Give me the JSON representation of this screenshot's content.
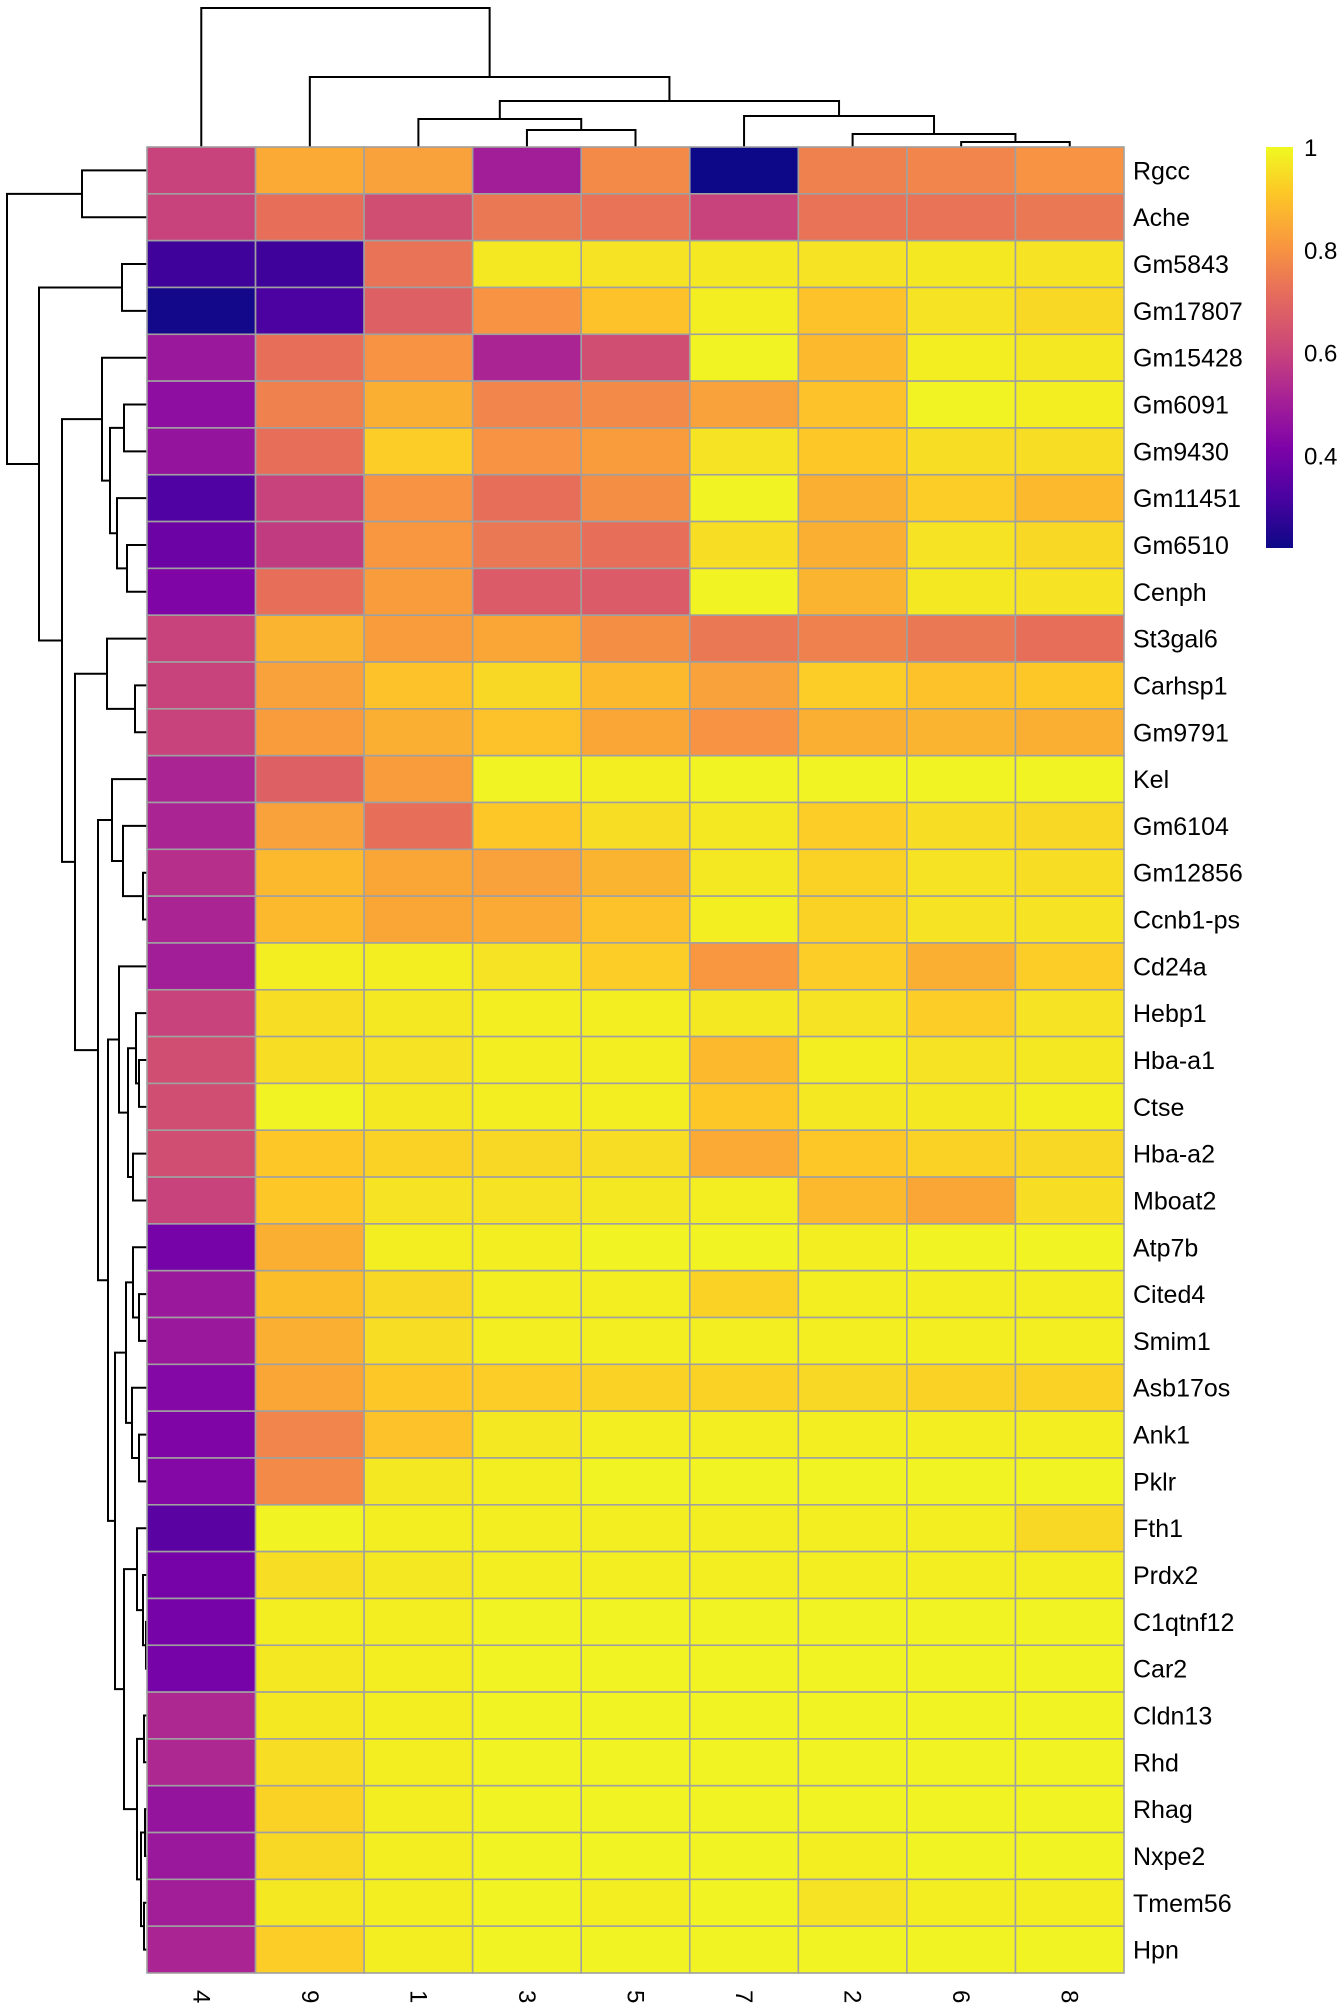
{
  "chart_data": {
    "type": "heatmap",
    "title": "",
    "colormap": "plasma",
    "color_range": [
      0.22,
      1
    ],
    "columns": [
      "4",
      "9",
      "1",
      "3",
      "5",
      "7",
      "2",
      "6",
      "8"
    ],
    "rows": [
      {
        "label": "Rgcc",
        "values": [
          0.6,
          0.85,
          0.83,
          0.5,
          0.78,
          0.22,
          0.76,
          0.77,
          0.8
        ]
      },
      {
        "label": "Ache",
        "values": [
          0.6,
          0.72,
          0.63,
          0.74,
          0.73,
          0.6,
          0.73,
          0.73,
          0.74
        ]
      },
      {
        "label": "Gm5843",
        "values": [
          0.3,
          0.3,
          0.73,
          0.97,
          0.96,
          0.97,
          0.96,
          0.97,
          0.96
        ]
      },
      {
        "label": "Gm17807",
        "values": [
          0.23,
          0.32,
          0.68,
          0.8,
          0.9,
          0.98,
          0.9,
          0.96,
          0.94
        ]
      },
      {
        "label": "Gm15428",
        "values": [
          0.48,
          0.72,
          0.8,
          0.52,
          0.63,
          0.99,
          0.88,
          0.98,
          0.97
        ]
      },
      {
        "label": "Gm6091",
        "values": [
          0.45,
          0.76,
          0.86,
          0.77,
          0.78,
          0.83,
          0.9,
          0.99,
          0.98
        ]
      },
      {
        "label": "Gm9430",
        "values": [
          0.47,
          0.72,
          0.92,
          0.8,
          0.82,
          0.96,
          0.91,
          0.95,
          0.95
        ]
      },
      {
        "label": "Gm11451",
        "values": [
          0.33,
          0.6,
          0.8,
          0.72,
          0.79,
          0.99,
          0.86,
          0.92,
          0.88
        ]
      },
      {
        "label": "Gm6510",
        "values": [
          0.38,
          0.58,
          0.81,
          0.74,
          0.72,
          0.95,
          0.86,
          0.96,
          0.94
        ]
      },
      {
        "label": "Cenph",
        "values": [
          0.42,
          0.72,
          0.82,
          0.67,
          0.67,
          0.99,
          0.87,
          0.97,
          0.96
        ]
      },
      {
        "label": "St3gal6",
        "values": [
          0.6,
          0.87,
          0.82,
          0.84,
          0.79,
          0.74,
          0.76,
          0.74,
          0.72
        ]
      },
      {
        "label": "Carhsp1",
        "values": [
          0.6,
          0.83,
          0.9,
          0.94,
          0.88,
          0.83,
          0.92,
          0.9,
          0.91
        ]
      },
      {
        "label": "Gm9791",
        "values": [
          0.6,
          0.82,
          0.86,
          0.9,
          0.84,
          0.8,
          0.86,
          0.87,
          0.86
        ]
      },
      {
        "label": "Kel",
        "values": [
          0.52,
          0.68,
          0.82,
          0.99,
          0.98,
          0.99,
          0.99,
          0.99,
          0.99
        ]
      },
      {
        "label": "Gm6104",
        "values": [
          0.52,
          0.83,
          0.72,
          0.91,
          0.95,
          0.97,
          0.92,
          0.95,
          0.94
        ]
      },
      {
        "label": "Gm12856",
        "values": [
          0.55,
          0.88,
          0.84,
          0.83,
          0.87,
          0.97,
          0.93,
          0.96,
          0.95
        ]
      },
      {
        "label": "Ccnb1-ps",
        "values": [
          0.52,
          0.88,
          0.84,
          0.85,
          0.9,
          0.98,
          0.93,
          0.96,
          0.96
        ]
      },
      {
        "label": "Cd24a",
        "values": [
          0.5,
          0.98,
          0.98,
          0.96,
          0.92,
          0.81,
          0.92,
          0.86,
          0.92
        ]
      },
      {
        "label": "Hebp1",
        "values": [
          0.6,
          0.95,
          0.97,
          0.98,
          0.98,
          0.97,
          0.96,
          0.92,
          0.96
        ]
      },
      {
        "label": "Hba-a1",
        "values": [
          0.63,
          0.95,
          0.96,
          0.98,
          0.98,
          0.88,
          0.98,
          0.96,
          0.97
        ]
      },
      {
        "label": "Ctse",
        "values": [
          0.63,
          0.99,
          0.97,
          0.98,
          0.98,
          0.91,
          0.97,
          0.97,
          0.98
        ]
      },
      {
        "label": "Hba-a2",
        "values": [
          0.63,
          0.91,
          0.93,
          0.94,
          0.95,
          0.85,
          0.91,
          0.93,
          0.94
        ]
      },
      {
        "label": "Mboat2",
        "values": [
          0.6,
          0.91,
          0.96,
          0.96,
          0.97,
          0.98,
          0.88,
          0.84,
          0.95
        ]
      },
      {
        "label": "Atp7b",
        "values": [
          0.4,
          0.86,
          0.98,
          0.98,
          0.99,
          0.99,
          0.98,
          0.99,
          0.99
        ]
      },
      {
        "label": "Cited4",
        "values": [
          0.48,
          0.89,
          0.94,
          0.98,
          0.98,
          0.93,
          0.98,
          0.98,
          0.98
        ]
      },
      {
        "label": "Smim1",
        "values": [
          0.48,
          0.86,
          0.95,
          0.98,
          0.98,
          0.98,
          0.98,
          0.98,
          0.98
        ]
      },
      {
        "label": "Asb17os",
        "values": [
          0.43,
          0.84,
          0.91,
          0.92,
          0.93,
          0.93,
          0.94,
          0.93,
          0.93
        ]
      },
      {
        "label": "Ank1",
        "values": [
          0.42,
          0.77,
          0.9,
          0.97,
          0.98,
          0.98,
          0.98,
          0.98,
          0.98
        ]
      },
      {
        "label": "Pklr",
        "values": [
          0.43,
          0.78,
          0.97,
          0.98,
          0.99,
          0.99,
          0.99,
          0.99,
          0.99
        ]
      },
      {
        "label": "Fth1",
        "values": [
          0.35,
          0.99,
          0.98,
          0.98,
          0.98,
          0.98,
          0.98,
          0.98,
          0.94
        ]
      },
      {
        "label": "Prdx2",
        "values": [
          0.4,
          0.95,
          0.97,
          0.98,
          0.98,
          0.98,
          0.98,
          0.98,
          0.98
        ]
      },
      {
        "label": "C1qtnf12",
        "values": [
          0.4,
          0.98,
          0.98,
          0.99,
          0.99,
          0.99,
          0.99,
          0.99,
          0.99
        ]
      },
      {
        "label": "Car2",
        "values": [
          0.4,
          0.97,
          0.98,
          0.99,
          0.99,
          0.99,
          0.99,
          0.99,
          0.99
        ]
      },
      {
        "label": "Cldn13",
        "values": [
          0.53,
          0.97,
          0.98,
          0.99,
          0.99,
          0.99,
          0.99,
          0.99,
          0.99
        ]
      },
      {
        "label": "Rhd",
        "values": [
          0.53,
          0.95,
          0.98,
          0.99,
          0.99,
          0.99,
          0.99,
          0.99,
          0.99
        ]
      },
      {
        "label": "Rhag",
        "values": [
          0.47,
          0.93,
          0.98,
          0.99,
          0.99,
          0.99,
          0.99,
          0.99,
          0.99
        ]
      },
      {
        "label": "Nxpe2",
        "values": [
          0.48,
          0.94,
          0.98,
          0.99,
          0.99,
          0.99,
          0.98,
          0.99,
          0.99
        ]
      },
      {
        "label": "Tmem56",
        "values": [
          0.5,
          0.97,
          0.98,
          0.99,
          0.98,
          0.99,
          0.96,
          0.98,
          0.98
        ]
      },
      {
        "label": "Hpn",
        "values": [
          0.52,
          0.92,
          0.98,
          0.99,
          0.99,
          0.99,
          0.99,
          0.99,
          0.99
        ]
      }
    ],
    "legend": {
      "ticks": [
        1,
        0.8,
        0.6,
        0.4
      ],
      "tick_labels": [
        "1",
        "0.8",
        "0.6",
        "0.4"
      ],
      "placement": "top-right"
    },
    "row_dendrogram": true,
    "column_dendrogram": true
  }
}
